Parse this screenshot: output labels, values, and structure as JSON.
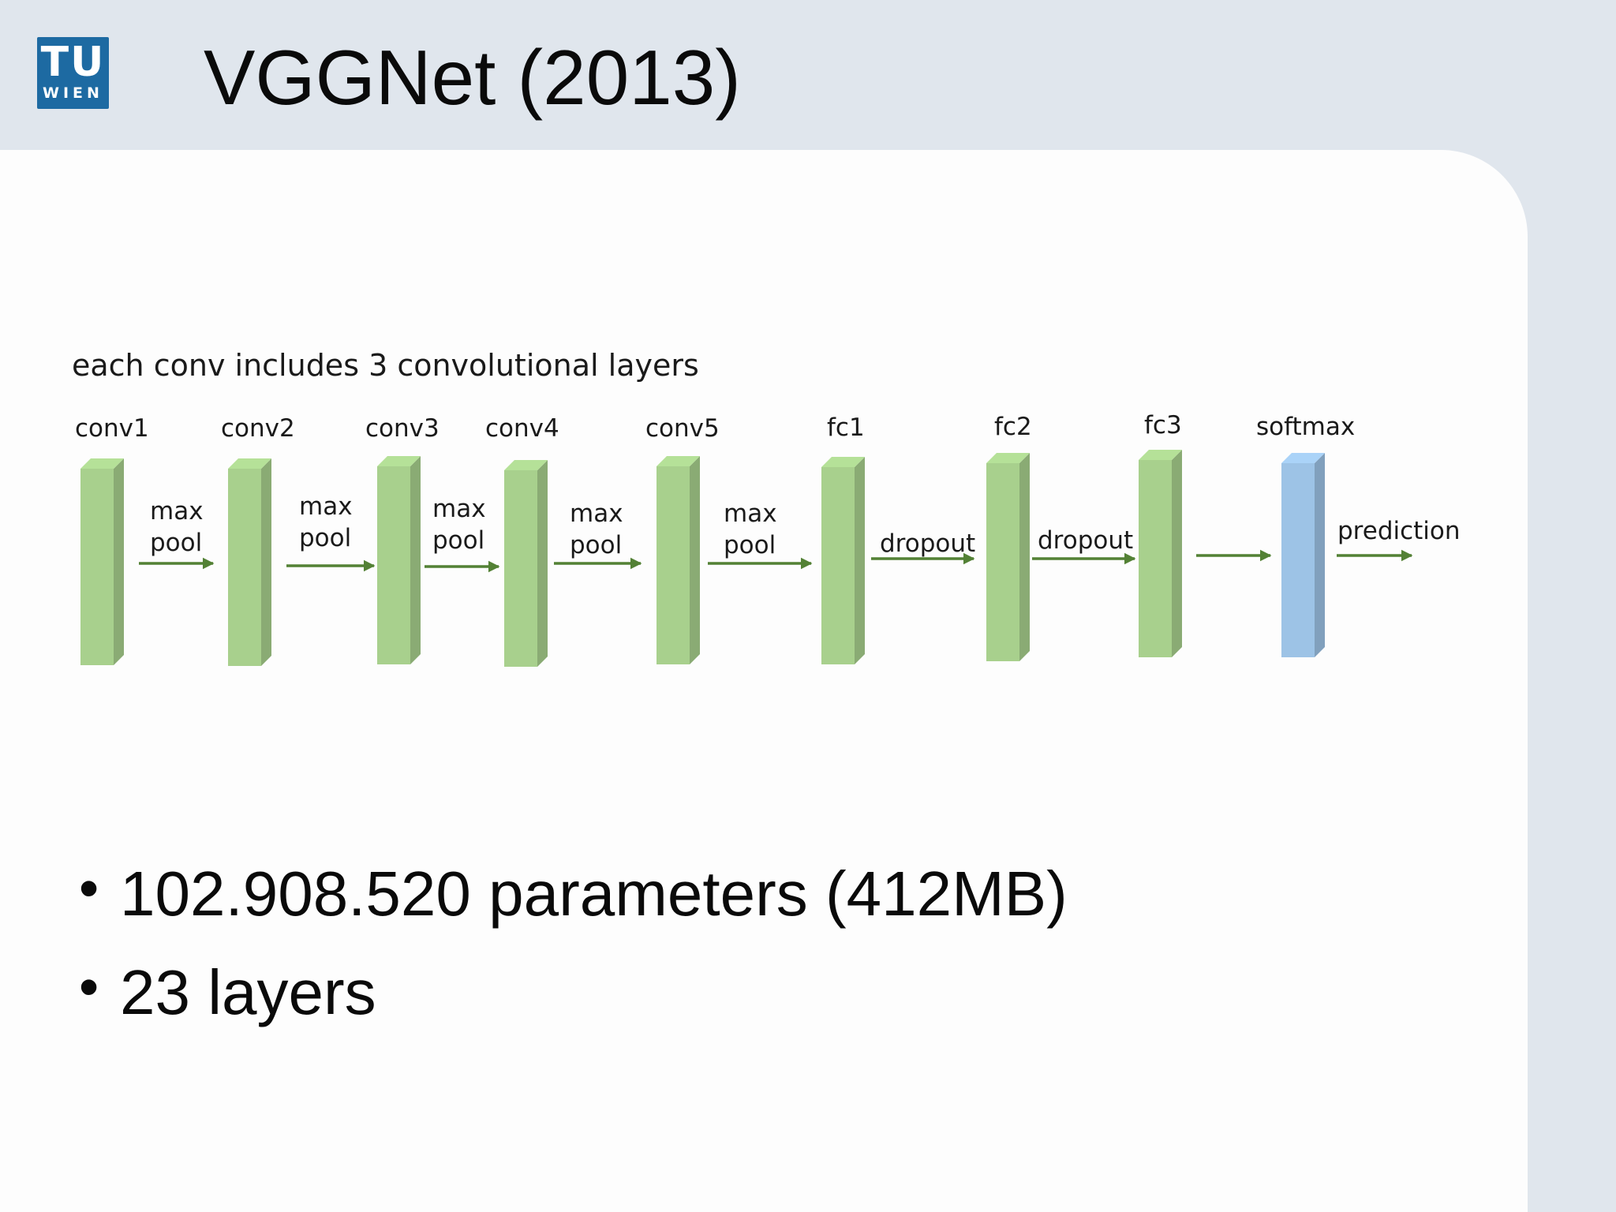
{
  "header": {
    "logo": {
      "top": "TU",
      "bottom": "WIEN"
    },
    "title": "VGGNet (2013)"
  },
  "diagram": {
    "caption": "each conv includes 3 convolutional layers",
    "layers": [
      {
        "label": "conv1",
        "kind": "conv",
        "color": "#a8d08d"
      },
      {
        "label": "conv2",
        "kind": "conv",
        "color": "#a8d08d"
      },
      {
        "label": "conv3",
        "kind": "conv",
        "color": "#a8d08d"
      },
      {
        "label": "conv4",
        "kind": "conv",
        "color": "#a8d08d"
      },
      {
        "label": "conv5",
        "kind": "conv",
        "color": "#a8d08d"
      },
      {
        "label": "fc1",
        "kind": "fc",
        "color": "#a8d08d"
      },
      {
        "label": "fc2",
        "kind": "fc",
        "color": "#a8d08d"
      },
      {
        "label": "fc3",
        "kind": "fc",
        "color": "#a8d08d"
      },
      {
        "label": "softmax",
        "kind": "output",
        "color": "#9dc3e6"
      }
    ],
    "connections": [
      {
        "lines": [
          "max",
          "pool"
        ]
      },
      {
        "lines": [
          "max",
          "pool"
        ]
      },
      {
        "lines": [
          "max",
          "pool"
        ]
      },
      {
        "lines": [
          "max",
          "pool"
        ]
      },
      {
        "lines": [
          "max",
          "pool"
        ]
      },
      {
        "lines": [
          "dropout"
        ]
      },
      {
        "lines": [
          "dropout"
        ]
      },
      {
        "lines": []
      },
      {
        "lines": [
          "prediction"
        ]
      }
    ],
    "arrow_color": "#538135"
  },
  "bullets": [
    "102.908.520 parameters (412MB)",
    "23 layers"
  ]
}
